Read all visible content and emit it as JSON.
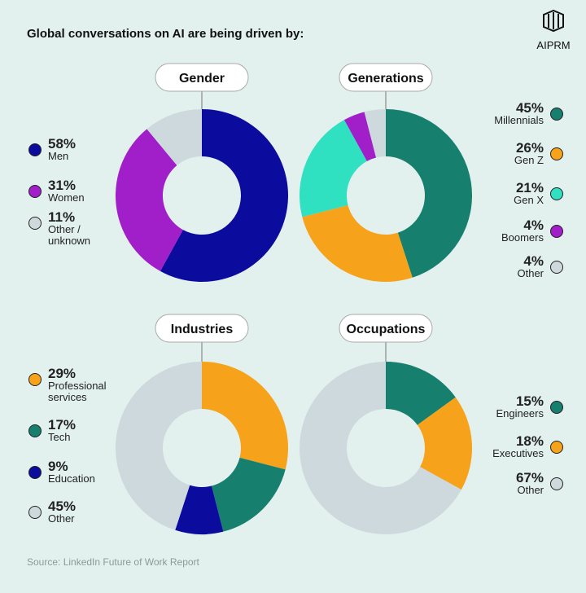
{
  "header": {
    "title": "Global conversations on AI are being driven by:",
    "brand": "AIPRM"
  },
  "source": "Source: LinkedIn Future of Work Report",
  "chart_data": [
    {
      "type": "donut",
      "title": "Gender",
      "categories": [
        "Men",
        "Women",
        "Other / unknown"
      ],
      "values": [
        58,
        31,
        11
      ],
      "value_labels": [
        "58%",
        "31%",
        "11%"
      ],
      "colors": [
        "#0b0b9e",
        "#a01fc9",
        "#cdd9dc"
      ],
      "legend": "left"
    },
    {
      "type": "donut",
      "title": "Generations",
      "categories": [
        "Millennials",
        "Gen Z",
        "Gen X",
        "Boomers",
        "Other"
      ],
      "values": [
        45,
        26,
        21,
        4,
        4
      ],
      "value_labels": [
        "45%",
        "26%",
        "21%",
        "4%",
        "4%"
      ],
      "colors": [
        "#167f6e",
        "#f7a21b",
        "#2fe0c1",
        "#a01fc9",
        "#cdd9dc"
      ],
      "legend": "right"
    },
    {
      "type": "donut",
      "title": "Industries",
      "categories": [
        "Professional services",
        "Tech",
        "Education",
        "Other"
      ],
      "values": [
        29,
        17,
        9,
        45
      ],
      "value_labels": [
        "29%",
        "17%",
        "9%",
        "45%"
      ],
      "colors": [
        "#f7a21b",
        "#167f6e",
        "#0b0b9e",
        "#cdd9dc"
      ],
      "legend": "left"
    },
    {
      "type": "donut",
      "title": "Occupations",
      "categories": [
        "Engineers",
        "Executives",
        "Other"
      ],
      "values": [
        15,
        18,
        67
      ],
      "value_labels": [
        "15%",
        "18%",
        "67%"
      ],
      "colors": [
        "#167f6e",
        "#f7a21b",
        "#cdd9dc"
      ],
      "legend": "right"
    }
  ]
}
